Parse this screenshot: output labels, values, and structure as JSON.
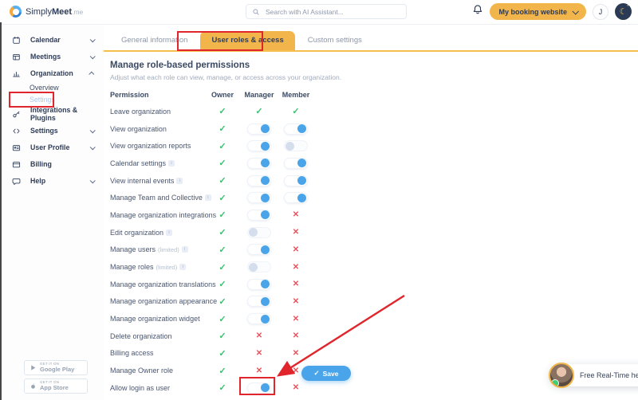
{
  "topbar": {
    "logo_simply": "Simply",
    "logo_meet": "Meet",
    "logo_me": ".me",
    "search_placeholder": "Search with AI Assistant...",
    "booking_button": "My booking website",
    "avatar_initial": "J",
    "dark_mode_icon": "☾"
  },
  "sidebar": {
    "items": [
      {
        "label": "Calendar",
        "icon": "calendar-icon",
        "chevron": "down"
      },
      {
        "label": "Meetings",
        "icon": "meetings-icon",
        "chevron": "down"
      },
      {
        "label": "Organization",
        "icon": "org-chart-icon",
        "chevron": "up",
        "children": [
          {
            "label": "Overview",
            "active": false
          },
          {
            "label": "Settings",
            "active": true
          }
        ]
      },
      {
        "label": "Integrations & Plugins",
        "icon": "integrations-icon"
      },
      {
        "label": "Settings",
        "icon": "code-icon",
        "chevron": "down"
      },
      {
        "label": "User Profile",
        "icon": "user-profile-icon",
        "chevron": "down"
      },
      {
        "label": "Billing",
        "icon": "billing-icon"
      },
      {
        "label": "Help",
        "icon": "help-icon",
        "chevron": "down"
      }
    ],
    "badges": [
      {
        "top": "GET IT ON",
        "bottom": "Google Play",
        "icon": "google-play-icon"
      },
      {
        "top": "GET IT ON",
        "bottom": "App Store",
        "icon": "apple-icon"
      }
    ]
  },
  "tabs": [
    {
      "label": "General information",
      "active": false
    },
    {
      "label": "User roles & access",
      "active": true
    },
    {
      "label": "Custom settings",
      "active": false
    }
  ],
  "content": {
    "title": "Manage role-based permissions",
    "subtitle": "Adjust what each role can view, manage, or access across your organization.",
    "columns": [
      "Permission",
      "Owner",
      "Manager",
      "Member"
    ],
    "rows": [
      {
        "label": "Leave organization",
        "owner": "check",
        "manager": "check",
        "member": "check"
      },
      {
        "label": "View organization",
        "owner": "check",
        "manager": "on",
        "member": "on"
      },
      {
        "label": "View organization reports",
        "owner": "check",
        "manager": "on",
        "member": "off"
      },
      {
        "label": "Calendar settings",
        "info": true,
        "owner": "check",
        "manager": "on",
        "member": "on"
      },
      {
        "label": "View internal events",
        "info": true,
        "owner": "check",
        "manager": "on",
        "member": "on"
      },
      {
        "label": "Manage Team and Collective",
        "info": true,
        "owner": "check",
        "manager": "on",
        "member": "on"
      },
      {
        "label": "Manage organization integrations",
        "owner": "check",
        "manager": "on",
        "member": "x"
      },
      {
        "label": "Edit organization",
        "info": true,
        "owner": "check",
        "manager": "off",
        "member": "x"
      },
      {
        "label": "Manage users",
        "suffix": "(limited)",
        "info": true,
        "owner": "check",
        "manager": "on",
        "member": "x"
      },
      {
        "label": "Manage roles",
        "suffix": "(limited)",
        "info": true,
        "owner": "check",
        "manager": "off",
        "member": "x"
      },
      {
        "label": "Manage organization translations",
        "owner": "check",
        "manager": "on",
        "member": "x"
      },
      {
        "label": "Manage organization appearance",
        "owner": "check",
        "manager": "on",
        "member": "x"
      },
      {
        "label": "Manage organization widget",
        "owner": "check",
        "manager": "on",
        "member": "x"
      },
      {
        "label": "Delete organization",
        "owner": "check",
        "manager": "x",
        "member": "x"
      },
      {
        "label": "Billing access",
        "owner": "check",
        "manager": "x",
        "member": "x"
      },
      {
        "label": "Manage Owner role",
        "owner": "check",
        "manager": "x",
        "member": "x"
      },
      {
        "label": "Allow login as user",
        "owner": "check",
        "manager": "on",
        "member": "x"
      }
    ],
    "save_icon": "✓",
    "save_label": "Save"
  },
  "help_widget": {
    "label": "Free Real-Time help"
  },
  "colors": {
    "accent_yellow": "#f2b54b",
    "accent_blue": "#49a4e9",
    "success_green": "#3dbd6f",
    "danger_red": "#e9515c",
    "annotation_red": "#e0262c"
  }
}
